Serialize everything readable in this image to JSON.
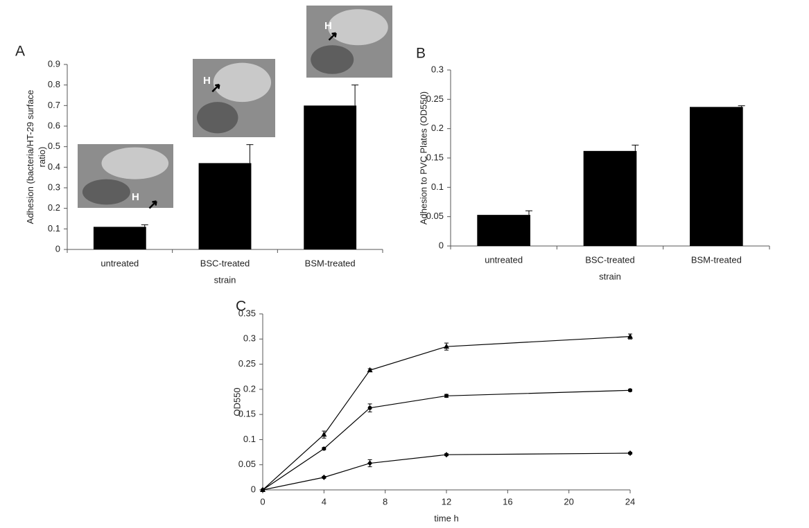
{
  "chart_data": [
    {
      "type": "bar",
      "panel_label": "A",
      "categories": [
        "untreated",
        "BSC-treated",
        "BSM-treated"
      ],
      "values": [
        0.11,
        0.42,
        0.7
      ],
      "errors": [
        0.01,
        0.09,
        0.1
      ],
      "color": "#000000",
      "xlabel": "strain",
      "ylabel": [
        "Adhesion (bacteria/HT-29 surface",
        "ratio)"
      ],
      "ylim": [
        0,
        0.9
      ],
      "yticks": [
        0,
        0.1,
        0.2,
        0.3,
        0.4,
        0.5,
        0.6,
        0.7,
        0.8,
        0.9
      ],
      "insets": [
        {
          "label": "H"
        },
        {
          "label": "H"
        },
        {
          "label": "H"
        }
      ]
    },
    {
      "type": "bar",
      "panel_label": "B",
      "categories": [
        "untreated",
        "BSC-treated",
        "BSM-treated"
      ],
      "values": [
        0.053,
        0.162,
        0.237
      ],
      "errors": [
        0.007,
        0.01,
        0.002
      ],
      "color": "#000000",
      "xlabel": "strain",
      "ylabel": [
        "Adhesion to PVC Plates (OD550)"
      ],
      "ylim": [
        0,
        0.3
      ],
      "yticks": [
        0,
        0.05,
        0.1,
        0.15,
        0.2,
        0.25,
        0.3
      ]
    },
    {
      "type": "line",
      "panel_label": "C",
      "x": [
        0,
        4,
        7,
        12,
        24
      ],
      "xlim": [
        0,
        24
      ],
      "xticks": [
        0,
        4,
        8,
        12,
        16,
        20,
        24
      ],
      "ylim": [
        0,
        0.35
      ],
      "yticks": [
        0,
        0.05,
        0.1,
        0.15,
        0.2,
        0.25,
        0.3,
        0.35
      ],
      "xlabel": "time h",
      "ylabel": [
        "OD550"
      ],
      "series": [
        {
          "color": "#000000",
          "marker": "triangle",
          "values": [
            0,
            0.11,
            0.238,
            0.285,
            0.305
          ],
          "errors": [
            0,
            0.007,
            0.003,
            0.007,
            0.005
          ]
        },
        {
          "color": "#000000",
          "marker": "circle",
          "values": [
            0,
            0.082,
            0.163,
            0.187,
            0.198
          ],
          "errors": [
            0,
            0.002,
            0.008,
            0.003,
            0.002
          ]
        },
        {
          "color": "#000000",
          "marker": "diamond",
          "values": [
            0,
            0.025,
            0.053,
            0.07,
            0.073
          ],
          "errors": [
            0,
            0.002,
            0.007,
            0.002,
            0.002
          ]
        }
      ]
    }
  ]
}
